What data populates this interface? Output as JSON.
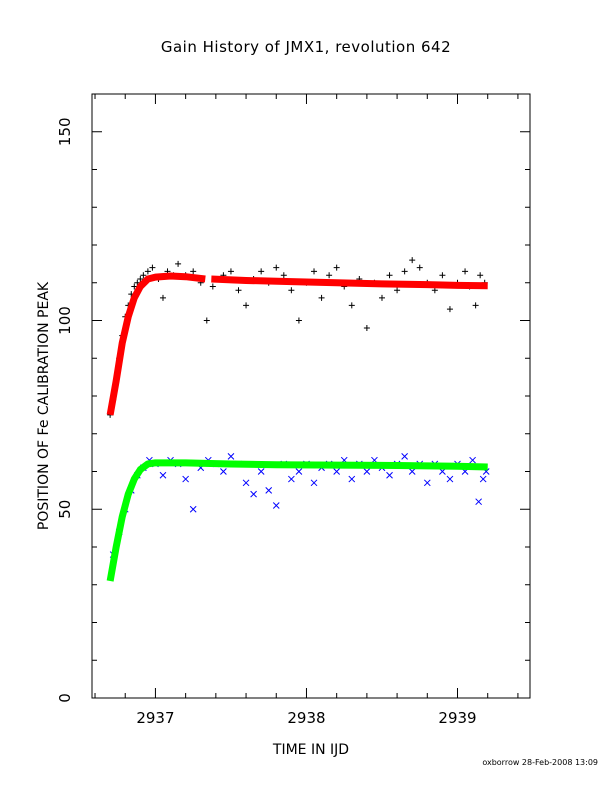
{
  "chart_data": {
    "type": "scatter",
    "title": "Gain History of JMX1, revolution 642",
    "xlabel": "TIME IN IJD",
    "ylabel": "POSITION OF Fe CALIBRATION PEAK",
    "xlim": [
      2936.58,
      2939.48
    ],
    "ylim": [
      0,
      160
    ],
    "xticks": [
      "2937",
      "2938",
      "2939"
    ],
    "yticks": [
      "0",
      "50",
      "100",
      "150"
    ],
    "grid": false,
    "legend": "none",
    "series": [
      {
        "marker": "plus",
        "color": "#000000",
        "x_range": [
          2936.7,
          2939.18
        ],
        "points": [
          [
            2936.7,
            75
          ],
          [
            2936.72,
            79
          ],
          [
            2936.74,
            84
          ],
          [
            2936.76,
            90
          ],
          [
            2936.78,
            96
          ],
          [
            2936.8,
            101
          ],
          [
            2936.82,
            104
          ],
          [
            2936.84,
            107
          ],
          [
            2936.86,
            109
          ],
          [
            2936.88,
            110
          ],
          [
            2936.9,
            111
          ],
          [
            2936.92,
            112
          ],
          [
            2936.95,
            113
          ],
          [
            2936.98,
            114
          ],
          [
            2937.02,
            111
          ],
          [
            2937.05,
            106
          ],
          [
            2937.08,
            113
          ],
          [
            2937.12,
            112
          ],
          [
            2937.15,
            115
          ],
          [
            2937.2,
            112
          ],
          [
            2937.25,
            113
          ],
          [
            2937.3,
            110
          ],
          [
            2937.34,
            100
          ],
          [
            2937.38,
            109
          ],
          [
            2937.45,
            112
          ],
          [
            2937.5,
            113
          ],
          [
            2937.55,
            108
          ],
          [
            2937.6,
            104
          ],
          [
            2937.65,
            111
          ],
          [
            2937.7,
            113
          ],
          [
            2937.75,
            110
          ],
          [
            2937.8,
            114
          ],
          [
            2937.85,
            112
          ],
          [
            2937.9,
            108
          ],
          [
            2937.95,
            100
          ],
          [
            2938.0,
            110
          ],
          [
            2938.05,
            113
          ],
          [
            2938.1,
            106
          ],
          [
            2938.15,
            112
          ],
          [
            2938.2,
            114
          ],
          [
            2938.25,
            109
          ],
          [
            2938.3,
            104
          ],
          [
            2938.35,
            111
          ],
          [
            2938.4,
            98
          ],
          [
            2938.45,
            110
          ],
          [
            2938.5,
            106
          ],
          [
            2938.55,
            112
          ],
          [
            2938.6,
            108
          ],
          [
            2938.65,
            113
          ],
          [
            2938.7,
            116
          ],
          [
            2938.75,
            114
          ],
          [
            2938.8,
            110
          ],
          [
            2938.85,
            108
          ],
          [
            2938.9,
            112
          ],
          [
            2938.95,
            103
          ],
          [
            2939.0,
            110
          ],
          [
            2939.05,
            113
          ],
          [
            2939.08,
            109
          ],
          [
            2939.12,
            104
          ],
          [
            2939.15,
            112
          ],
          [
            2939.18,
            110
          ]
        ]
      },
      {
        "marker": "line",
        "color": "#ff0000",
        "x": [
          2936.7,
          2936.74,
          2936.78,
          2936.82,
          2936.86,
          2936.9,
          2936.95,
          2937.0,
          2937.1,
          2937.2,
          2937.33,
          2937.37,
          2937.6,
          2937.9,
          2938.2,
          2938.5,
          2938.8,
          2939.0,
          2939.2
        ],
        "y": [
          75,
          84,
          94,
          101,
          106,
          109,
          111,
          111.5,
          111.8,
          111.6,
          111,
          111,
          110.6,
          110.3,
          110,
          109.7,
          109.5,
          109.3,
          109.2
        ],
        "gap": [
          2937.34,
          2937.37
        ]
      },
      {
        "marker": "cross",
        "color": "#0000ff",
        "points": [
          [
            2936.72,
            38
          ],
          [
            2936.76,
            44
          ],
          [
            2936.8,
            50
          ],
          [
            2936.84,
            55
          ],
          [
            2936.88,
            59
          ],
          [
            2936.92,
            61
          ],
          [
            2936.96,
            63
          ],
          [
            2937.0,
            62
          ],
          [
            2937.05,
            59
          ],
          [
            2937.1,
            63
          ],
          [
            2937.15,
            62
          ],
          [
            2937.2,
            58
          ],
          [
            2937.25,
            50
          ],
          [
            2937.3,
            61
          ],
          [
            2937.35,
            63
          ],
          [
            2937.4,
            62
          ],
          [
            2937.45,
            60
          ],
          [
            2937.5,
            64
          ],
          [
            2937.55,
            62
          ],
          [
            2937.6,
            57
          ],
          [
            2937.65,
            54
          ],
          [
            2937.7,
            60
          ],
          [
            2937.75,
            55
          ],
          [
            2937.8,
            51
          ],
          [
            2937.85,
            62
          ],
          [
            2937.9,
            58
          ],
          [
            2937.95,
            60
          ],
          [
            2938.0,
            62
          ],
          [
            2938.05,
            57
          ],
          [
            2938.1,
            61
          ],
          [
            2938.15,
            62
          ],
          [
            2938.2,
            60
          ],
          [
            2938.25,
            63
          ],
          [
            2938.3,
            58
          ],
          [
            2938.35,
            62
          ],
          [
            2938.4,
            60
          ],
          [
            2938.45,
            63
          ],
          [
            2938.5,
            61
          ],
          [
            2938.55,
            59
          ],
          [
            2938.6,
            62
          ],
          [
            2938.65,
            64
          ],
          [
            2938.7,
            60
          ],
          [
            2938.75,
            62
          ],
          [
            2938.8,
            57
          ],
          [
            2938.85,
            62
          ],
          [
            2938.9,
            60
          ],
          [
            2938.95,
            58
          ],
          [
            2939.0,
            62
          ],
          [
            2939.05,
            60
          ],
          [
            2939.1,
            63
          ],
          [
            2939.14,
            52
          ],
          [
            2939.17,
            58
          ],
          [
            2939.19,
            60
          ]
        ]
      },
      {
        "marker": "line",
        "color": "#00ff00",
        "x": [
          2936.7,
          2936.74,
          2936.78,
          2936.82,
          2936.86,
          2936.9,
          2936.95,
          2937.0,
          2937.2,
          2937.5,
          2937.8,
          2938.2,
          2938.6,
          2939.0,
          2939.2
        ],
        "y": [
          31,
          40,
          48,
          54,
          58,
          60.5,
          62,
          62.3,
          62.3,
          62,
          61.8,
          61.7,
          61.6,
          61.4,
          61.2
        ]
      }
    ],
    "annotations": [
      "oxborrow 28-Feb-2008 13:09"
    ]
  }
}
